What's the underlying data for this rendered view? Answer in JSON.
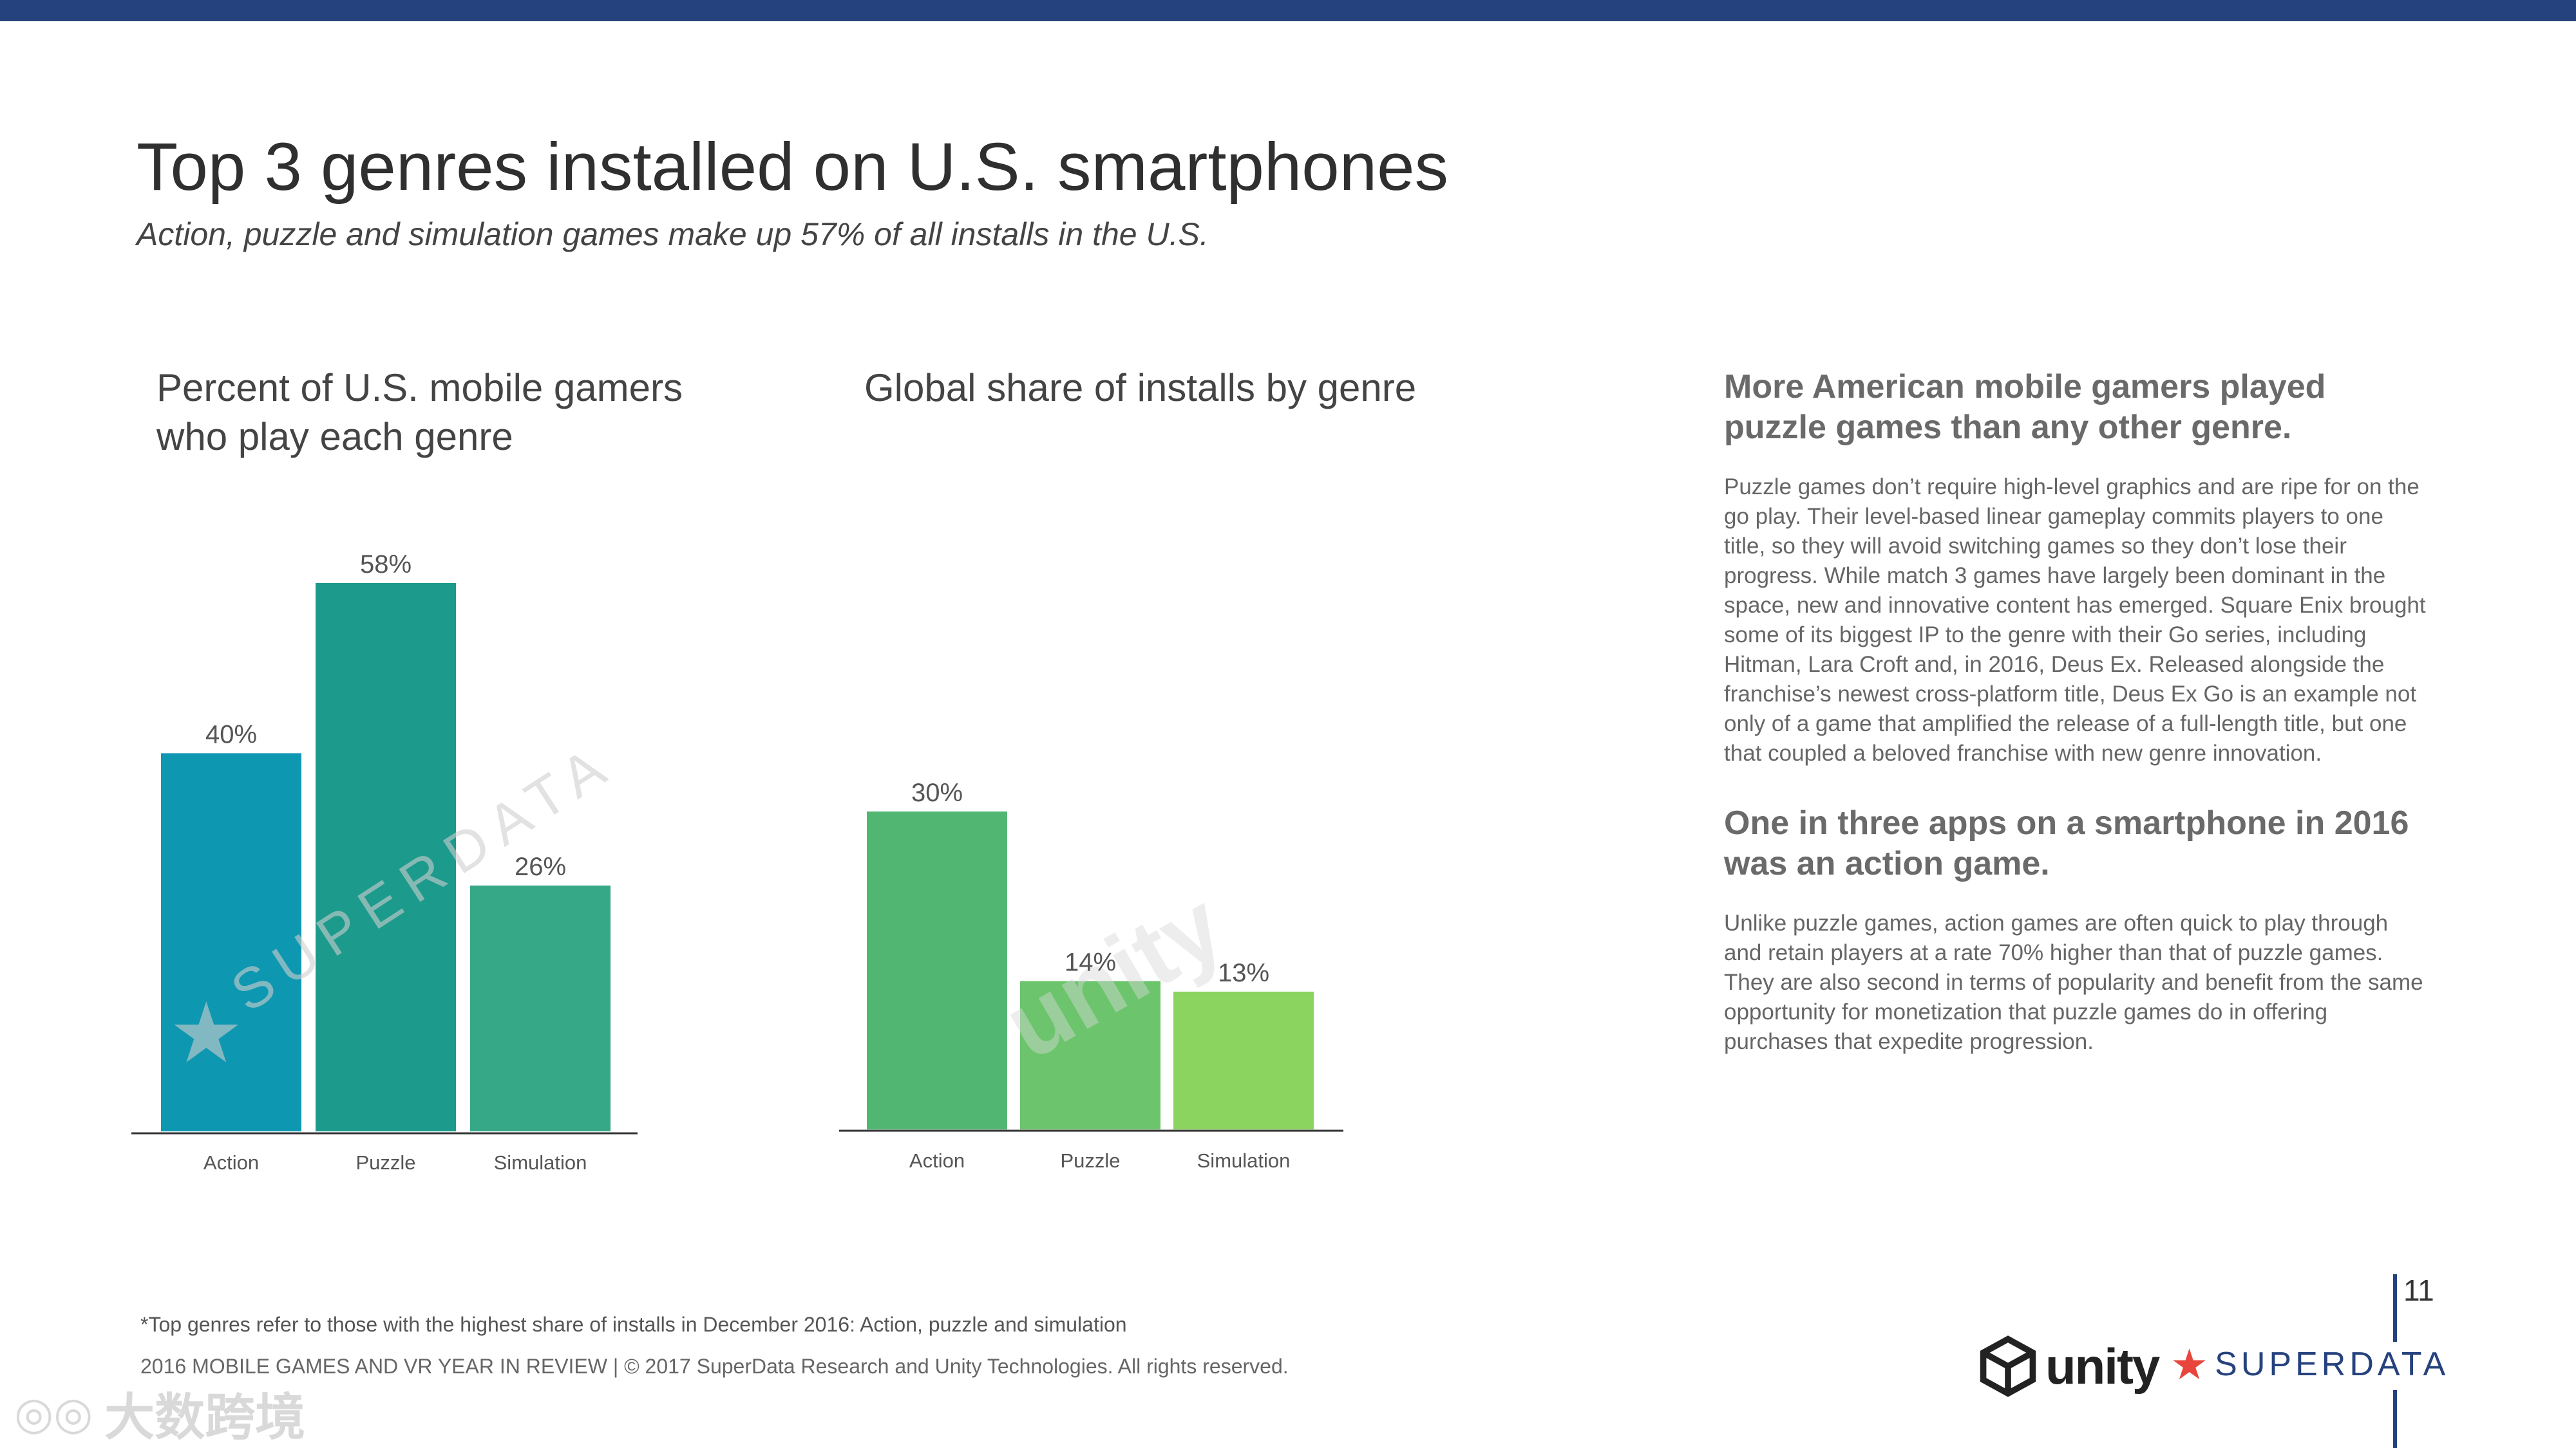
{
  "header": {
    "title": "Top 3 genres installed on U.S. smartphones",
    "subtitle": "Action, puzzle and simulation games make up 57% of all installs in the U.S."
  },
  "chart_data": [
    {
      "type": "bar",
      "title": "Percent of U.S. mobile gamers who play each genre",
      "categories": [
        "Action",
        "Puzzle",
        "Simulation"
      ],
      "values": [
        40,
        58,
        26
      ],
      "value_labels": [
        "40%",
        "58%",
        "26%"
      ],
      "colors": [
        "#0e97b0",
        "#1c9a8c",
        "#36a887"
      ],
      "ylim": [
        0,
        58
      ],
      "unit": "%"
    },
    {
      "type": "bar",
      "title": "Global share of installs by genre",
      "categories": [
        "Action",
        "Puzzle",
        "Simulation"
      ],
      "values": [
        30,
        14,
        13
      ],
      "value_labels": [
        "30%",
        "14%",
        "13%"
      ],
      "colors": [
        "#52b673",
        "#6cc46c",
        "#8bd45f"
      ],
      "ylim": [
        0,
        58
      ],
      "unit": "%"
    }
  ],
  "sidebar": {
    "heading1": "More American mobile gamers played puzzle games than any other genre.",
    "para1": "Puzzle games don’t require high-level graphics and are ripe for on the go play. Their level-based linear gameplay commits players to one title, so they will avoid switching games so they don’t lose their progress. While match 3 games have largely been dominant in the space, new and innovative content has emerged. Square Enix brought some of its biggest IP to the genre with their Go series, including Hitman, Lara Croft and, in 2016, Deus Ex. Released alongside the franchise’s newest cross-platform title, Deus Ex Go is an example not only of a game that amplified the release of a full-length title, but one that coupled a beloved franchise with new genre innovation.",
    "heading2": "One in three apps on a smartphone in 2016 was an action game.",
    "para2": "Unlike puzzle games, action games are often quick to play through and retain players at a rate 70% higher than that of puzzle games. They are also second in terms of popularity and benefit from the same opportunity for monetization that puzzle games do in offering purchases that expedite progression."
  },
  "footer": {
    "footnote": "*Top genres refer to those with the highest share of installs in December 2016: Action, puzzle and simulation",
    "copyright": "2016 MOBILE GAMES AND VR YEAR IN REVIEW  |  © 2017 SuperData Research and Unity Technologies. All rights reserved.",
    "page_number": "11"
  },
  "logos": {
    "unity": "unity",
    "superdata": "SUPERDATA"
  },
  "watermarks": {
    "chart1": "SUPERDATA",
    "chart2": "unity",
    "corner": "大数跨境"
  },
  "colors": {
    "brand_navy": "#26427e",
    "superdata_red": "#e8453c"
  }
}
